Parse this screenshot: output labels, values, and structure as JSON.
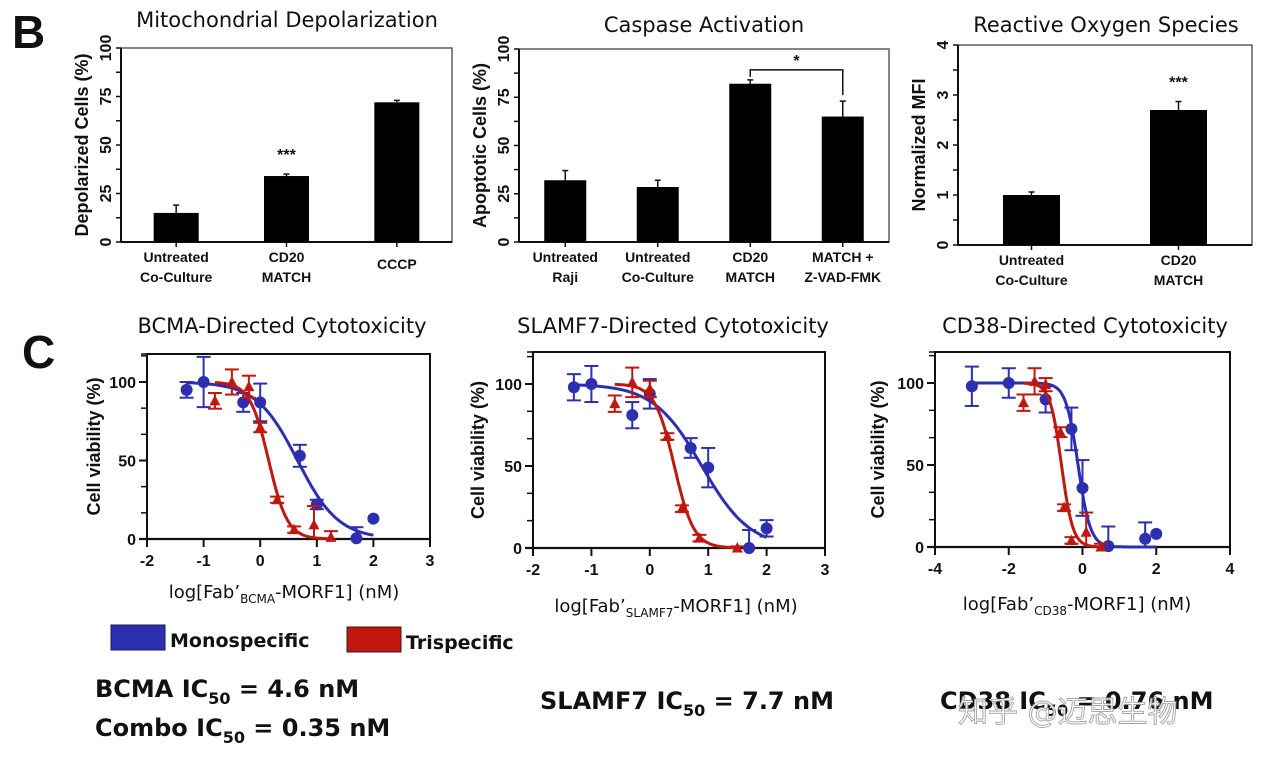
{
  "figure": {
    "panel_B_label": "B",
    "panel_C_label": "C",
    "watermark": "知乎 @迈思生物"
  },
  "colors": {
    "monospecific": "#2b2fb0",
    "trispecific": "#c0170f",
    "bar": "#000000",
    "axis": "#111111"
  },
  "legend": {
    "items": [
      {
        "label": "Monospecific",
        "color": "#2b2fb0"
      },
      {
        "label": "Trispecific",
        "color": "#c0170f"
      }
    ]
  },
  "ic50": {
    "bcma": {
      "prefix": "BCMA IC",
      "sub": "50",
      "suffix": " = 4.6 nM"
    },
    "combo": {
      "prefix": "Combo IC",
      "sub": "50",
      "suffix": " = 0.35 nM"
    },
    "slamf7": {
      "prefix": "SLAMF7 IC",
      "sub": "50",
      "suffix": " = 7.7 nM"
    },
    "cd38": {
      "prefix": "CD38 IC",
      "sub": "50",
      "suffix": " = 0.76 nM"
    }
  },
  "chart_data": [
    {
      "id": "mito",
      "type": "bar",
      "title": "Mitochondrial Depolarization",
      "xlabel": "",
      "ylabel": "Depolarized Cells (%)",
      "ylim": [
        0,
        100
      ],
      "yticks": [
        0,
        25,
        50,
        75,
        100
      ],
      "categories": [
        [
          "Untreated",
          "Co-Culture"
        ],
        [
          "CD20",
          "MATCH"
        ],
        [
          "CCCP"
        ]
      ],
      "values": [
        15,
        34,
        72
      ],
      "errors": [
        4,
        1,
        1
      ],
      "annotations": [
        {
          "category_index": 1,
          "text": "***"
        }
      ]
    },
    {
      "id": "caspase",
      "type": "bar",
      "title": "Caspase Activation",
      "xlabel": "",
      "ylabel": "Apoptotic Cells (%)",
      "ylim": [
        0,
        100
      ],
      "yticks": [
        0,
        25,
        50,
        75,
        100
      ],
      "categories": [
        [
          "Untreated",
          "Raji"
        ],
        [
          "Untreated",
          "Co-Culture"
        ],
        [
          "CD20",
          "MATCH"
        ],
        [
          "MATCH +",
          "Z-VAD-FMK"
        ]
      ],
      "values": [
        32,
        28.5,
        82,
        65
      ],
      "errors": [
        5,
        3.5,
        2,
        8
      ],
      "annotations": [
        {
          "bracket": [
            2,
            3
          ],
          "text": "*"
        }
      ]
    },
    {
      "id": "ros",
      "type": "bar",
      "title": "Reactive Oxygen Species",
      "xlabel": "",
      "ylabel": "Normalized MFI",
      "ylim": [
        0,
        4
      ],
      "yticks": [
        0,
        1,
        2,
        3,
        4
      ],
      "categories": [
        [
          "Untreated",
          "Co-Culture"
        ],
        [
          "CD20",
          "MATCH"
        ]
      ],
      "values": [
        1.0,
        2.7
      ],
      "errors": [
        0.06,
        0.17
      ],
      "annotations": [
        {
          "category_index": 1,
          "text": "***"
        }
      ]
    },
    {
      "id": "bcma",
      "type": "scatter",
      "title": "BCMA-Directed Cytotoxicity",
      "xlabel_parts": {
        "pre": "log[Fab’",
        "sub": "BCMA",
        "post": "-MORF1] (nM)"
      },
      "ylabel": "Cell viability (%)",
      "xlim": [
        -2,
        3
      ],
      "ylim": [
        0,
        118
      ],
      "xticks": [
        -2,
        -1,
        0,
        1,
        2,
        3
      ],
      "yticks": [
        0,
        50,
        100
      ],
      "series": [
        {
          "name": "Monospecific",
          "marker": "circle",
          "x": [
            -1.3,
            -1.0,
            -0.3,
            0.0,
            0.7,
            1.0,
            1.7,
            2.0
          ],
          "y": [
            95,
            100,
            87,
            87,
            53,
            22,
            0.5,
            13
          ],
          "err": [
            5,
            16,
            6,
            12,
            7,
            3,
            7,
            0
          ],
          "fit": {
            "top": 100,
            "bottom": 0,
            "log_ic50": 0.66,
            "hill": 1.2
          }
        },
        {
          "name": "Trispecific",
          "marker": "triangle",
          "x": [
            -0.8,
            -0.5,
            -0.2,
            0.0,
            0.3,
            0.6,
            0.95,
            1.25
          ],
          "y": [
            88,
            100,
            97,
            71,
            25,
            6,
            9,
            1
          ],
          "err": [
            5,
            8,
            7,
            3,
            2,
            2,
            12,
            4
          ],
          "fit": {
            "top": 100,
            "bottom": 0,
            "log_ic50": 0.15,
            "hill": 2.6
          }
        }
      ]
    },
    {
      "id": "slamf7",
      "type": "scatter",
      "title": "SLAMF7-Directed Cytotoxicity",
      "xlabel_parts": {
        "pre": "log[Fab’",
        "sub": "SLAMF7",
        "post": "-MORF1] (nM)"
      },
      "ylabel": "Cell viability (%)",
      "xlim": [
        -2,
        3
      ],
      "ylim": [
        0,
        118
      ],
      "xticks": [
        -2,
        -1,
        0,
        1,
        2,
        3
      ],
      "yticks": [
        0,
        50,
        100
      ],
      "series": [
        {
          "name": "Monospecific",
          "marker": "circle",
          "x": [
            -1.3,
            -1.0,
            -0.3,
            0.0,
            0.7,
            1.0,
            1.7,
            2.0
          ],
          "y": [
            98,
            100,
            81,
            94,
            61,
            49,
            0,
            12
          ],
          "err": [
            8,
            11,
            8,
            9,
            6,
            12,
            11,
            5
          ],
          "fit": {
            "top": 100,
            "bottom": 0,
            "log_ic50": 0.89,
            "hill": 1.05
          }
        },
        {
          "name": "Trispecific",
          "marker": "triangle",
          "x": [
            -0.6,
            -0.3,
            0.0,
            0.3,
            0.55,
            0.85,
            1.5
          ],
          "y": [
            88,
            101,
            97,
            68,
            24,
            6,
            0
          ],
          "err": [
            5,
            9,
            5,
            2,
            2,
            2,
            1
          ],
          "fit": {
            "top": 100,
            "bottom": 0,
            "log_ic50": 0.42,
            "hill": 2.6
          }
        }
      ]
    },
    {
      "id": "cd38",
      "type": "scatter",
      "title": "CD38-Directed Cytotoxicity",
      "xlabel_parts": {
        "pre": "log[Fab’",
        "sub": "CD38",
        "post": "-MORF1] (nM)"
      },
      "ylabel": "Cell viability (%)",
      "xlim": [
        -4,
        4
      ],
      "ylim": [
        0,
        118
      ],
      "xticks": [
        -4,
        -2,
        0,
        2,
        4
      ],
      "yticks": [
        0,
        50,
        100
      ],
      "series": [
        {
          "name": "Monospecific",
          "marker": "circle",
          "x": [
            -3.0,
            -2.0,
            -1.0,
            -0.3,
            0.0,
            0.7,
            1.7,
            2.0
          ],
          "y": [
            98,
            100,
            90,
            72,
            36,
            0.5,
            5,
            8
          ],
          "err": [
            12,
            9,
            8,
            13,
            17,
            12,
            10,
            0
          ],
          "fit": {
            "top": 100,
            "bottom": 0,
            "log_ic50": -0.12,
            "hill": 2.6
          }
        },
        {
          "name": "Trispecific",
          "marker": "triangle",
          "x": [
            -1.6,
            -1.3,
            -1.0,
            -0.6,
            -0.5,
            -0.3,
            0.1,
            0.5
          ],
          "y": [
            88,
            101,
            99,
            70,
            24,
            4,
            9,
            0
          ],
          "err": [
            5,
            8,
            4,
            3,
            2,
            2,
            12,
            2
          ],
          "fit": {
            "top": 100,
            "bottom": 0,
            "log_ic50": -0.57,
            "hill": 2.8
          }
        }
      ]
    }
  ]
}
